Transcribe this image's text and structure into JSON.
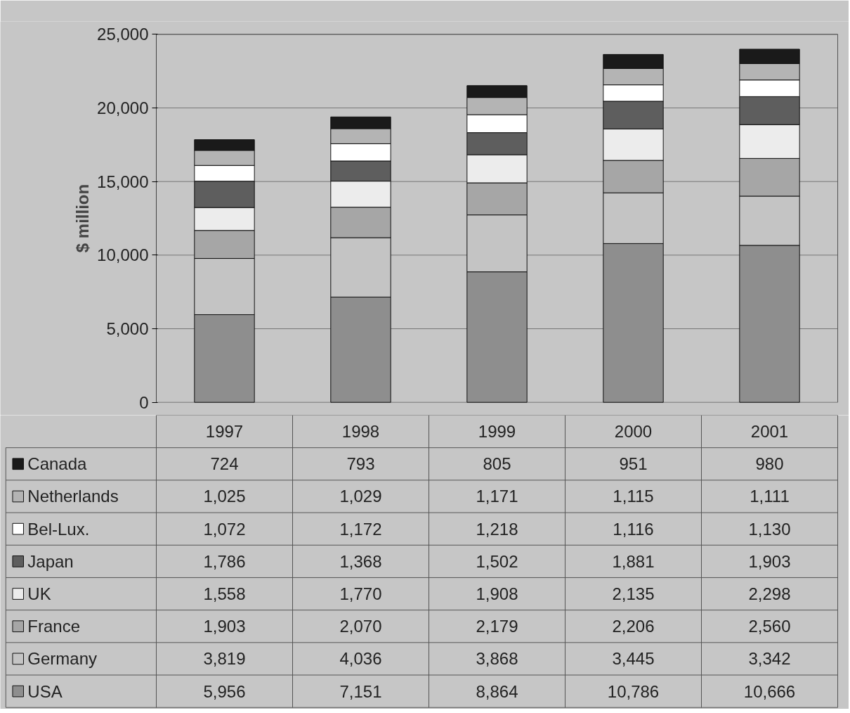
{
  "chart_data": {
    "type": "bar",
    "stacked": true,
    "ylabel": "$ million",
    "categories": [
      "1997",
      "1998",
      "1999",
      "2000",
      "2001"
    ],
    "series": [
      {
        "name": "USA",
        "color": "#8e8e8e",
        "values": [
          5956,
          7151,
          8864,
          10786,
          10666
        ],
        "value_labels": [
          "5,956",
          "7,151",
          "8,864",
          "10,786",
          "10,666"
        ]
      },
      {
        "name": "Germany",
        "color": "#c4c4c4",
        "values": [
          3819,
          4036,
          3868,
          3445,
          3342
        ],
        "value_labels": [
          "3,819",
          "4,036",
          "3,868",
          "3,445",
          "3,342"
        ]
      },
      {
        "name": "France",
        "color": "#a6a6a6",
        "values": [
          1903,
          2070,
          2179,
          2206,
          2560
        ],
        "value_labels": [
          "1,903",
          "2,070",
          "2,179",
          "2,206",
          "2,560"
        ]
      },
      {
        "name": "UK",
        "color": "#ececec",
        "values": [
          1558,
          1770,
          1908,
          2135,
          2298
        ],
        "value_labels": [
          "1,558",
          "1,770",
          "1,908",
          "2,135",
          "2,298"
        ]
      },
      {
        "name": "Japan",
        "color": "#5e5e5e",
        "values": [
          1786,
          1368,
          1502,
          1881,
          1903
        ],
        "value_labels": [
          "1,786",
          "1,368",
          "1,502",
          "1,881",
          "1,903"
        ]
      },
      {
        "name": "Bel-Lux.",
        "color": "#ffffff",
        "values": [
          1072,
          1172,
          1218,
          1116,
          1130
        ],
        "value_labels": [
          "1,072",
          "1,172",
          "1,218",
          "1,116",
          "1,130"
        ]
      },
      {
        "name": "Netherlands",
        "color": "#b4b4b4",
        "values": [
          1025,
          1029,
          1171,
          1115,
          1111
        ],
        "value_labels": [
          "1,025",
          "1,029",
          "1,171",
          "1,115",
          "1,111"
        ]
      },
      {
        "name": "Canada",
        "color": "#1a1a1a",
        "values": [
          724,
          793,
          805,
          951,
          980
        ],
        "value_labels": [
          "724",
          "793",
          "805",
          "951",
          "980"
        ]
      }
    ],
    "ylim": [
      0,
      25000
    ],
    "yticks": [
      {
        "value": 0,
        "label": "0"
      },
      {
        "value": 5000,
        "label": "5,000"
      },
      {
        "value": 10000,
        "label": "10,000"
      },
      {
        "value": 15000,
        "label": "15,000"
      },
      {
        "value": 20000,
        "label": "20,000"
      },
      {
        "value": 25000,
        "label": "25,000"
      }
    ],
    "grid": "y",
    "legend": "bottom"
  }
}
